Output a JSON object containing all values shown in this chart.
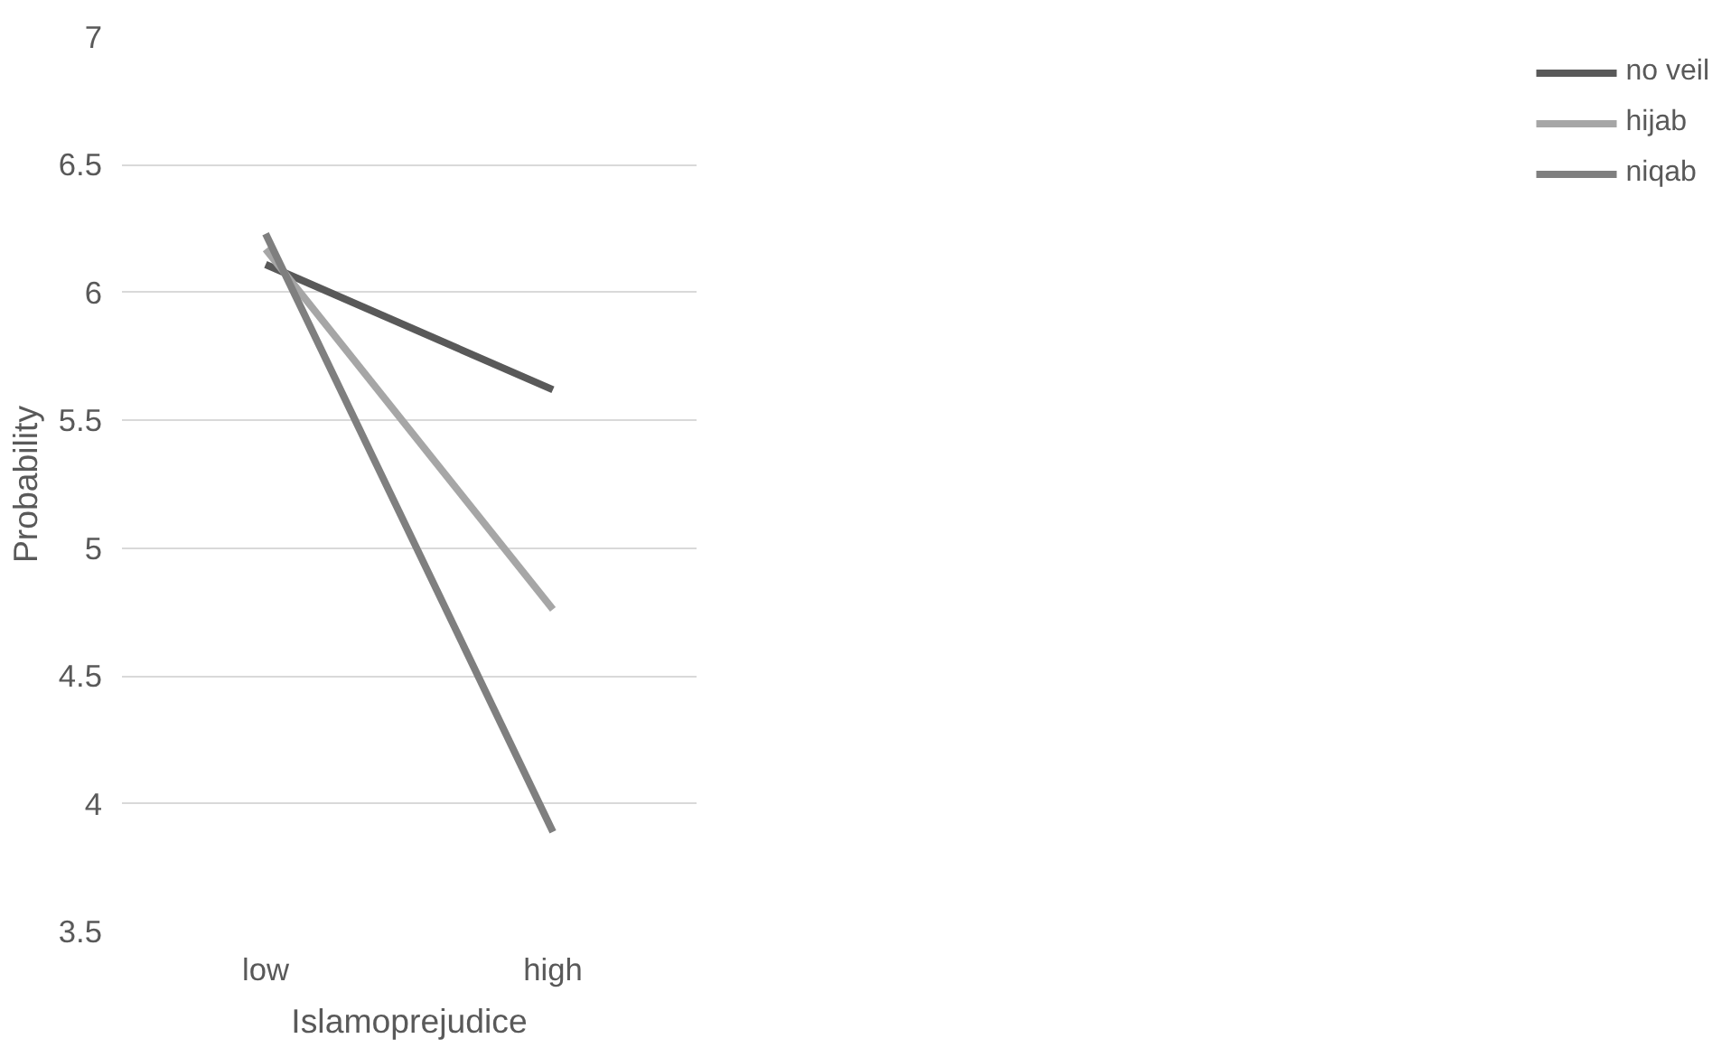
{
  "chart_data": {
    "type": "line",
    "xlabel": "Islamoprejudice",
    "ylabel": "Probability",
    "categories": [
      "low",
      "high"
    ],
    "series": [
      {
        "name": "no veil",
        "color": "#595959",
        "values": [
          6.11,
          5.62
        ]
      },
      {
        "name": "hijab",
        "color": "#a6a6a6",
        "values": [
          6.17,
          4.76
        ]
      },
      {
        "name": "niqab",
        "color": "#7f7f7f",
        "values": [
          6.23,
          3.89
        ]
      }
    ],
    "ylim": [
      3.5,
      7
    ],
    "yticks": [
      3.5,
      4,
      4.5,
      5,
      5.5,
      6,
      6.5,
      7
    ],
    "grid": "y",
    "legend": "right",
    "marker": "none",
    "line_style": "solid"
  }
}
